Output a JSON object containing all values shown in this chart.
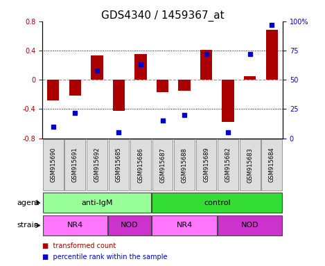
{
  "title": "GDS4340 / 1459367_at",
  "samples": [
    "GSM915690",
    "GSM915691",
    "GSM915692",
    "GSM915685",
    "GSM915686",
    "GSM915687",
    "GSM915688",
    "GSM915689",
    "GSM915682",
    "GSM915683",
    "GSM915684"
  ],
  "bar_values": [
    -0.28,
    -0.22,
    0.33,
    -0.42,
    0.35,
    -0.17,
    -0.15,
    0.41,
    -0.58,
    0.05,
    0.68
  ],
  "percentile_values": [
    10,
    22,
    58,
    5,
    63,
    15,
    20,
    72,
    5,
    72,
    97
  ],
  "bar_color": "#AA0000",
  "dot_color": "#0000CC",
  "ylim": [
    -0.8,
    0.8
  ],
  "yticks": [
    -0.8,
    -0.4,
    0.0,
    0.4,
    0.8
  ],
  "ytick_labels": [
    "-0.8",
    "-0.4",
    "0",
    "0.4",
    "0.8"
  ],
  "right_yticks": [
    0,
    25,
    50,
    75,
    100
  ],
  "right_ytick_labels": [
    "0",
    "25",
    "50",
    "75",
    "100%"
  ],
  "dotted_lines": [
    -0.4,
    0.4
  ],
  "zero_line_color": "#FF6666",
  "agent_groups": [
    {
      "label": "anti-IgM",
      "start": 0,
      "end": 5,
      "color": "#99FF99"
    },
    {
      "label": "control",
      "start": 5,
      "end": 11,
      "color": "#33DD33"
    }
  ],
  "strain_groups": [
    {
      "label": "NR4",
      "start": 0,
      "end": 3,
      "color": "#FF77FF"
    },
    {
      "label": "NOD",
      "start": 3,
      "end": 5,
      "color": "#CC33CC"
    },
    {
      "label": "NR4",
      "start": 5,
      "end": 8,
      "color": "#FF77FF"
    },
    {
      "label": "NOD",
      "start": 8,
      "end": 11,
      "color": "#CC33CC"
    }
  ],
  "agent_label": "agent",
  "strain_label": "strain",
  "legend_bar_label": "transformed count",
  "legend_dot_label": "percentile rank within the sample",
  "bar_width": 0.55,
  "tick_label_fontsize": 7,
  "title_fontsize": 11,
  "sample_box_color": "#DDDDDD"
}
